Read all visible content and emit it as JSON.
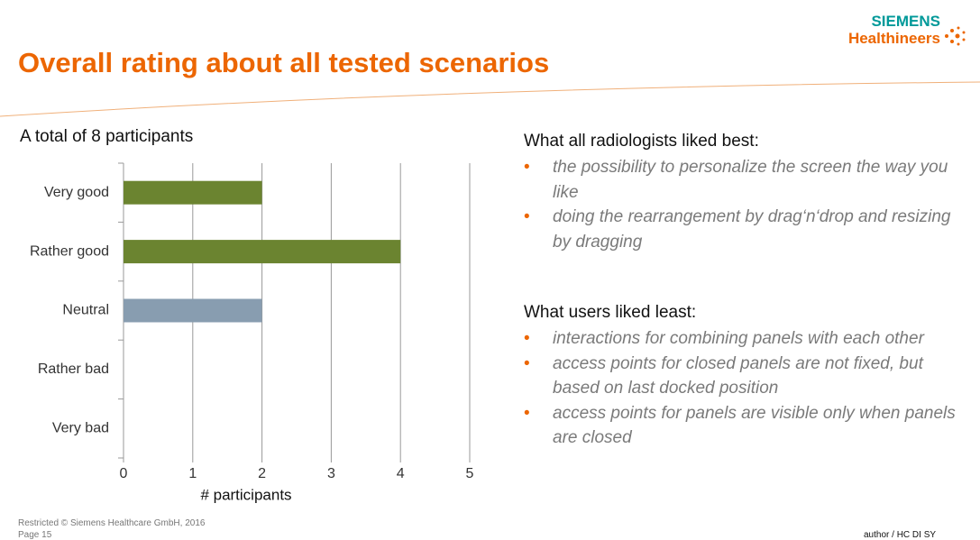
{
  "logo": {
    "brand": "SIEMENS",
    "product": "Healthineers"
  },
  "title": "Overall rating about all tested scenarios",
  "chart_data": {
    "type": "hbar",
    "title": "A total of 8 participants",
    "categories": [
      "Very good",
      "Rather good",
      "Neutral",
      "Rather bad",
      "Very bad"
    ],
    "values": [
      2,
      4,
      2,
      0,
      0
    ],
    "colors": [
      "#6b8430",
      "#6b8430",
      "#889db0",
      "#889db0",
      "#889db0"
    ],
    "xlim": [
      0,
      5
    ],
    "xticks": [
      0,
      1,
      2,
      3,
      4,
      5
    ],
    "xlabel": "# participants",
    "grid": true
  },
  "sections": [
    {
      "heading": "What all radiologists liked best:",
      "items": [
        "the possibility to personalize the screen the way you like",
        "doing the rearrangement by drag‘n‘drop and resizing by dragging"
      ]
    },
    {
      "heading": "What users liked least:",
      "items": [
        "interactions for combining panels with each other",
        "access points for closed panels are not fixed, but based on last docked position",
        "access points for panels are visible only when panels are closed"
      ]
    }
  ],
  "footer": {
    "legal": "Restricted © Siemens Healthcare GmbH, 2016",
    "page": "Page 15",
    "author": "author / HC DI SY"
  }
}
